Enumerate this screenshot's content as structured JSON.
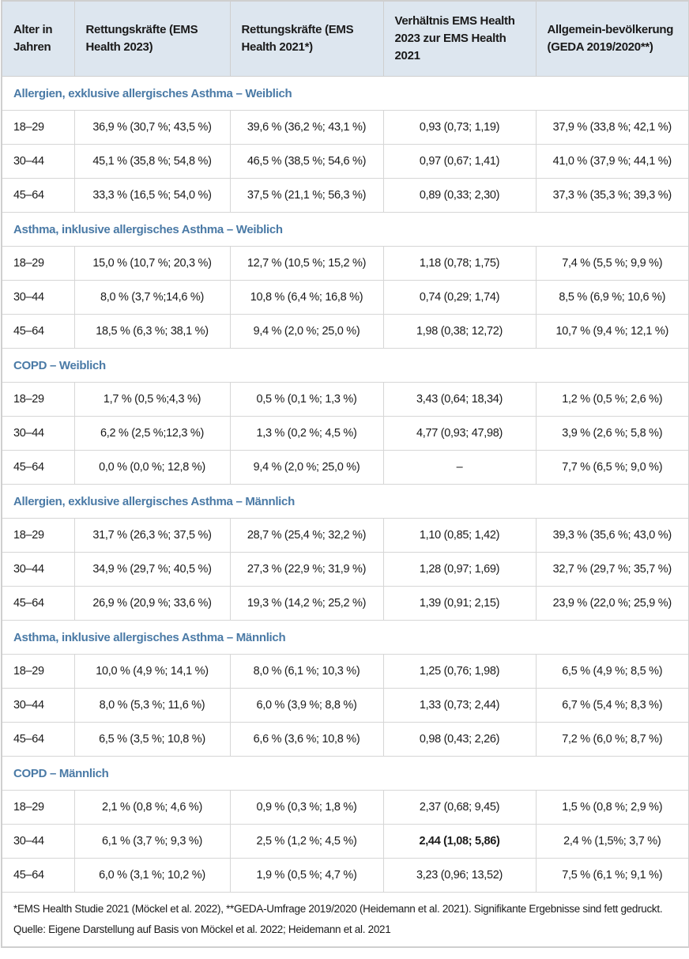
{
  "header": [
    "Alter in Jahren",
    "Rettungskräfte (EMS Health 2023)",
    "Rettungskräfte (EMS Health 2021*)",
    "Verhältnis EMS Health 2023 zur EMS Health 2021",
    "Allgemein-bevölkerung (GEDA 2019/2020**)"
  ],
  "sections": [
    {
      "title": "Allergien, exklusive allergisches Asthma – Weiblich",
      "rows": [
        [
          "18–29",
          "36,9 % (30,7 %; 43,5 %)",
          "39,6 % (36,2 %; 43,1 %)",
          "0,93 (0,73; 1,19)",
          "37,9 % (33,8 %; 42,1 %)"
        ],
        [
          "30–44",
          "45,1 % (35,8 %; 54,8 %)",
          "46,5 % (38,5 %; 54,6 %)",
          "0,97 (0,67; 1,41)",
          "41,0 % (37,9 %; 44,1 %)"
        ],
        [
          "45–64",
          "33,3 % (16,5 %; 54,0 %)",
          "37,5 % (21,1 %; 56,3 %)",
          "0,89 (0,33; 2,30)",
          "37,3 % (35,3 %; 39,3 %)"
        ]
      ]
    },
    {
      "title": "Asthma, inklusive allergisches Asthma – Weiblich",
      "rows": [
        [
          "18–29",
          "15,0 % (10,7 %; 20,3 %)",
          "12,7 % (10,5 %; 15,2 %)",
          "1,18 (0,78; 1,75)",
          "7,4 % (5,5 %; 9,9 %)"
        ],
        [
          "30–44",
          "8,0 % (3,7 %;14,6 %)",
          "10,8 % (6,4 %; 16,8 %)",
          "0,74 (0,29; 1,74)",
          "8,5 % (6,9 %; 10,6 %)"
        ],
        [
          "45–64",
          "18,5 % (6,3 %; 38,1 %)",
          "9,4 % (2,0 %; 25,0 %)",
          "1,98 (0,38; 12,72)",
          "10,7 % (9,4 %; 12,1 %)"
        ]
      ]
    },
    {
      "title": "COPD – Weiblich",
      "rows": [
        [
          "18–29",
          "1,7 % (0,5 %;4,3 %)",
          "0,5 % (0,1 %; 1,3 %)",
          "3,43 (0,64; 18,34)",
          "1,2 % (0,5 %; 2,6 %)"
        ],
        [
          "30–44",
          "6,2 % (2,5 %;12,3 %)",
          "1,3 % (0,2 %; 4,5 %)",
          "4,77 (0,93; 47,98)",
          "3,9 % (2,6 %; 5,8 %)"
        ],
        [
          "45–64",
          "0,0 % (0,0 %; 12,8 %)",
          "9,4 % (2,0 %; 25,0 %)",
          "–",
          "7,7 % (6,5 %; 9,0 %)"
        ]
      ]
    },
    {
      "title": "Allergien, exklusive allergisches Asthma – Männlich",
      "rows": [
        [
          "18–29",
          "31,7 % (26,3 %; 37,5 %)",
          "28,7 % (25,4 %; 32,2 %)",
          "1,10 (0,85; 1,42)",
          "39,3 % (35,6 %; 43,0 %)"
        ],
        [
          "30–44",
          "34,9 % (29,7 %; 40,5 %)",
          "27,3 % (22,9 %; 31,9 %)",
          "1,28 (0,97; 1,69)",
          "32,7 % (29,7 %; 35,7 %)"
        ],
        [
          "45–64",
          "26,9 % (20,9 %; 33,6 %)",
          "19,3 % (14,2 %; 25,2 %)",
          "1,39 (0,91; 2,15)",
          "23,9 % (22,0 %; 25,9 %)"
        ]
      ]
    },
    {
      "title": "Asthma, inklusive allergisches Asthma – Männlich",
      "rows": [
        [
          "18–29",
          "10,0 % (4,9 %; 14,1 %)",
          "8,0 % (6,1 %; 10,3 %)",
          "1,25 (0,76; 1,98)",
          "6,5 % (4,9 %; 8,5 %)"
        ],
        [
          "30–44",
          "8,0 % (5,3 %; 11,6 %)",
          "6,0 % (3,9 %; 8,8 %)",
          "1,33 (0,73; 2,44)",
          "6,7 % (5,4 %; 8,3 %)"
        ],
        [
          "45–64",
          "6,5 % (3,5 %; 10,8 %)",
          "6,6 % (3,6 %; 10,8 %)",
          "0,98 (0,43; 2,26)",
          "7,2 % (6,0 %; 8,7 %)"
        ]
      ]
    },
    {
      "title": "COPD – Männlich",
      "rows": [
        [
          "18–29",
          "2,1 % (0,8 %; 4,6 %)",
          "0,9 % (0,3 %; 1,8 %)",
          "2,37 (0,68; 9,45)",
          "1,5 % (0,8 %; 2,9 %)"
        ],
        [
          "30–44",
          "6,1 % (3,7 %; 9,3 %)",
          "2,5 % (1,2 %; 4,5 %)",
          "2,44 (1,08; 5,86)",
          "2,4 % (1,5%; 3,7 %)"
        ],
        [
          "45–64",
          "6,0 % (3,1 %; 10,2 %)",
          "1,9 % (0,5 %; 4,7 %)",
          "3,23 (0,96; 13,52)",
          "7,5 % (6,1 %; 9,1 %)"
        ]
      ]
    }
  ],
  "bold_cells": [
    {
      "section": 5,
      "row": 1,
      "col": 3
    }
  ],
  "footnote": "*EMS Health Studie 2021 (Möckel et al. 2022), **GEDA-Umfrage 2019/2020 (Heidemann et al. 2021). Signifikante Ergebnisse sind fett gedruckt. Quelle: Eigene Darstellung auf Basis von Möckel et al. 2022; Heidemann et al. 2021",
  "colors": {
    "header_bg": "#dde6ef",
    "section_title": "#4a7aa6",
    "border": "#cfcfcf"
  }
}
